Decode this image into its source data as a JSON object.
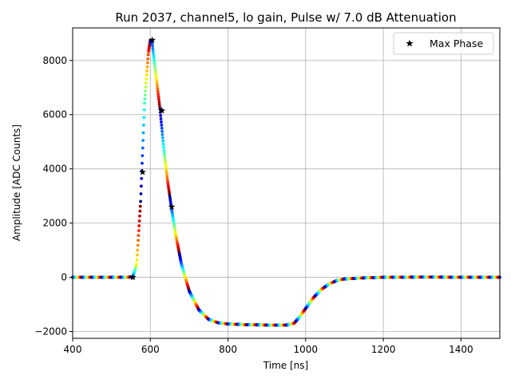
{
  "chart_data": {
    "type": "scatter",
    "title": "Run 2037, channel5, lo gain, Pulse w/ 7.0 dB Attenuation",
    "xlabel": "Time [ns]",
    "ylabel": "Amplitude [ADC Counts]",
    "xlim": [
      400,
      1500
    ],
    "ylim": [
      -2250,
      9200
    ],
    "grid": true,
    "legend_position": "top-right",
    "x_ticks": [
      400,
      600,
      800,
      1000,
      1200,
      1400
    ],
    "x_tick_labels": [
      "400",
      "600",
      "800",
      "1000",
      "1200",
      "1400"
    ],
    "y_ticks": [
      -2000,
      0,
      2000,
      4000,
      6000,
      8000
    ],
    "y_tick_labels": [
      "−2000",
      "0",
      "2000",
      "4000",
      "6000",
      "8000"
    ],
    "pulse_waveform": {
      "x": [
        400,
        540,
        555,
        565,
        575,
        585,
        595,
        600,
        605,
        615,
        625,
        635,
        645,
        655,
        665,
        680,
        700,
        725,
        750,
        775,
        800,
        850,
        900,
        950,
        970,
        985,
        1000,
        1020,
        1040,
        1060,
        1080,
        1100,
        1150,
        1200,
        1300,
        1400,
        1500
      ],
      "y": [
        0,
        0,
        20,
        500,
        2800,
        6400,
        8300,
        8750,
        8600,
        7400,
        6200,
        4700,
        3500,
        2500,
        1600,
        500,
        -500,
        -1200,
        -1550,
        -1680,
        -1720,
        -1750,
        -1760,
        -1760,
        -1700,
        -1450,
        -1150,
        -750,
        -450,
        -250,
        -120,
        -60,
        -20,
        0,
        10,
        5,
        0
      ],
      "colormap": "jet"
    },
    "series": [
      {
        "name": "Max Phase",
        "marker": "star",
        "color": "#000000",
        "x": [
          555,
          580,
          605,
          630,
          655
        ],
        "y": [
          0,
          3880,
          8750,
          6150,
          2600
        ]
      }
    ]
  }
}
